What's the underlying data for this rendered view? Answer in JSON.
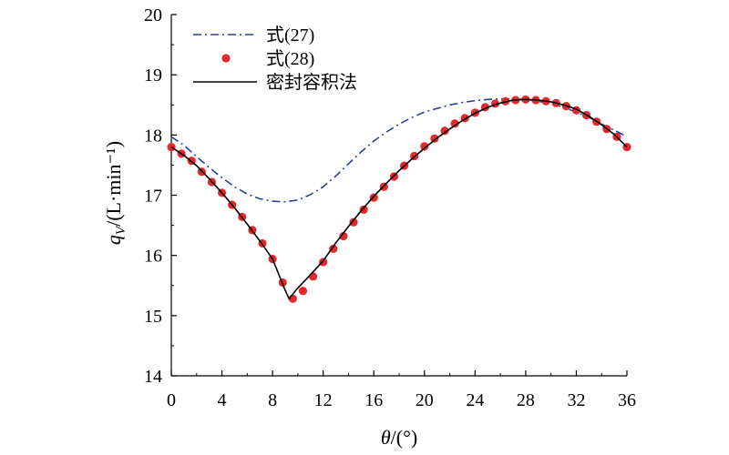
{
  "chart_data": {
    "type": "line",
    "xlabel": "θ/(°)",
    "ylabel": "q_V/(L·min⁻¹)",
    "xlim": [
      0,
      36
    ],
    "ylim": [
      14,
      20
    ],
    "xticks": [
      0,
      4,
      8,
      12,
      16,
      20,
      24,
      28,
      32,
      36
    ],
    "yticks": [
      14,
      15,
      16,
      17,
      18,
      19,
      20
    ],
    "grid": false,
    "legend_position": "top-left",
    "x": [
      0,
      1,
      2,
      3,
      4,
      5,
      6,
      7,
      8,
      9,
      10,
      11,
      12,
      13,
      14,
      15,
      16,
      17,
      18,
      19,
      20,
      21,
      22,
      23,
      24,
      25,
      26,
      27,
      28,
      29,
      30,
      31,
      32,
      33,
      34,
      35,
      36
    ],
    "series": [
      {
        "name": "式(27)",
        "style": "dashdot",
        "color": "#2b3f99",
        "values": [
          17.97,
          17.83,
          17.64,
          17.46,
          17.29,
          17.14,
          17.02,
          16.94,
          16.9,
          16.89,
          16.92,
          17.01,
          17.14,
          17.32,
          17.52,
          17.72,
          17.9,
          18.05,
          18.18,
          18.29,
          18.38,
          18.44,
          18.5,
          18.54,
          18.57,
          18.59,
          18.6,
          18.6,
          18.59,
          18.56,
          18.52,
          18.46,
          18.38,
          18.29,
          18.18,
          18.08,
          17.97
        ]
      },
      {
        "name": "式(28)",
        "style": "markers",
        "color": "#e32a2a",
        "x": [
          0,
          0.8,
          1.6,
          2.4,
          3.2,
          4,
          4.8,
          5.6,
          6.4,
          7.2,
          8,
          8.8,
          9.6,
          10.4,
          11.2,
          12,
          12.8,
          13.6,
          14.4,
          15.2,
          16,
          16.8,
          17.6,
          18.4,
          19.2,
          20,
          20.8,
          21.6,
          22.4,
          23.2,
          24,
          24.8,
          25.6,
          26.4,
          27.2,
          28,
          28.8,
          29.6,
          30.4,
          31.2,
          32,
          32.8,
          33.6,
          34.4,
          35.2,
          36
        ],
        "values": [
          17.8,
          17.69,
          17.57,
          17.39,
          17.22,
          17.04,
          16.84,
          16.64,
          16.42,
          16.2,
          15.94,
          15.55,
          15.28,
          15.41,
          15.65,
          15.89,
          16.11,
          16.32,
          16.55,
          16.76,
          16.96,
          17.14,
          17.31,
          17.49,
          17.65,
          17.81,
          17.94,
          18.07,
          18.19,
          18.28,
          18.37,
          18.46,
          18.52,
          18.56,
          18.58,
          18.59,
          18.58,
          18.56,
          18.53,
          18.48,
          18.41,
          18.33,
          18.22,
          18.1,
          17.97,
          17.8
        ]
      },
      {
        "name": "密封容积法",
        "style": "solid",
        "color": "#000000",
        "x": [
          0,
          1,
          2,
          3,
          4,
          5,
          6,
          7,
          8,
          9,
          9.3,
          10,
          11,
          12,
          13,
          14,
          15,
          16,
          17,
          18,
          19,
          20,
          21,
          22,
          23,
          24,
          25,
          26,
          27,
          28,
          29,
          30,
          31,
          32,
          33,
          34,
          35,
          36
        ],
        "values": [
          17.8,
          17.66,
          17.49,
          17.27,
          17.04,
          16.79,
          16.52,
          16.24,
          15.94,
          15.42,
          15.28,
          15.46,
          15.68,
          15.91,
          16.21,
          16.48,
          16.74,
          16.98,
          17.2,
          17.41,
          17.6,
          17.78,
          17.95,
          18.1,
          18.24,
          18.36,
          18.46,
          18.53,
          18.58,
          18.59,
          18.58,
          18.55,
          18.5,
          18.43,
          18.31,
          18.17,
          18.01,
          17.8
        ]
      }
    ]
  }
}
